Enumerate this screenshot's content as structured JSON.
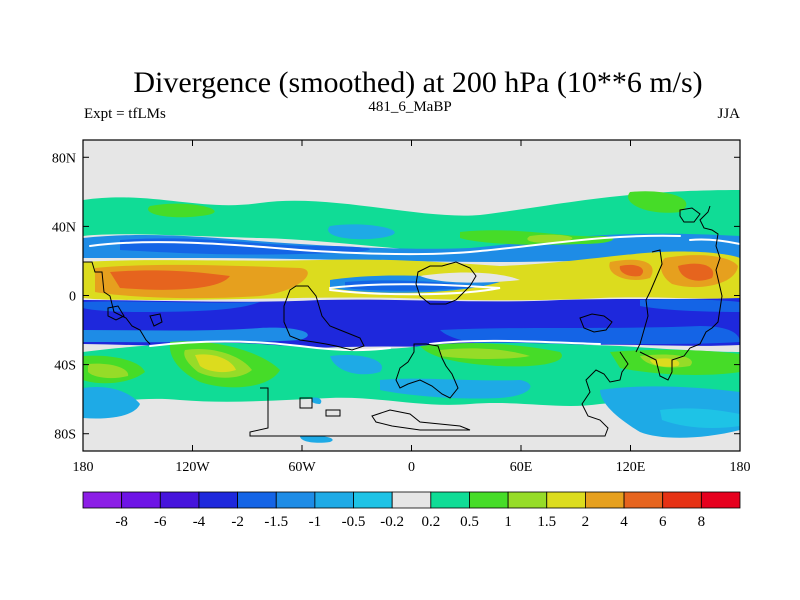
{
  "chart_data": {
    "type": "heatmap",
    "title": "Divergence (smoothed) at 200 hPa (10**6 m/s)",
    "left_label": "Expt = tfLMs",
    "center_label": "481_6_MaBP",
    "right_label": "JJA",
    "x_range": [
      -180,
      180
    ],
    "y_range": [
      -90,
      90
    ],
    "x_ticks": [
      {
        "value": -180,
        "label": "180"
      },
      {
        "value": -120,
        "label": "120W"
      },
      {
        "value": -60,
        "label": "60W"
      },
      {
        "value": 0,
        "label": "0"
      },
      {
        "value": 60,
        "label": "60E"
      },
      {
        "value": 120,
        "label": "120E"
      },
      {
        "value": 180,
        "label": "180"
      }
    ],
    "y_ticks": [
      {
        "value": 80,
        "label": "80N"
      },
      {
        "value": 40,
        "label": "40N"
      },
      {
        "value": 0,
        "label": "0"
      },
      {
        "value": -40,
        "label": "40S"
      },
      {
        "value": -80,
        "label": "80S"
      }
    ],
    "colorbar": {
      "levels": [
        "-8",
        "-6",
        "-4",
        "-2",
        "-1.5",
        "-1",
        "-0.5",
        "-0.2",
        "0.2",
        "0.5",
        "1",
        "1.5",
        "2",
        "4",
        "6",
        "8"
      ],
      "colors": [
        "#8c1ee6",
        "#6e14e6",
        "#4614dc",
        "#1e28dc",
        "#1464e6",
        "#1e8ce6",
        "#1eaae6",
        "#1ec3e6",
        "#e6e6e6",
        "#10dc96",
        "#46dc28",
        "#96dc28",
        "#dcdc1e",
        "#e6a01e",
        "#e6641e",
        "#e63214",
        "#e6001e"
      ]
    },
    "bands": [
      {
        "zone": "north-mid-lat green",
        "lat_range": [
          25,
          50
        ],
        "value": 0.5
      },
      {
        "zone": "northern tropics blue",
        "lat_range": [
          15,
          30
        ],
        "value": -1
      },
      {
        "zone": "northern subtropics yellow-orange",
        "lat_range": [
          -5,
          18
        ],
        "value": 2
      },
      {
        "zone": "equatorial deep blue",
        "lat_range": [
          -35,
          -5
        ],
        "value": -2
      },
      {
        "zone": "southern mid-lat green",
        "lat_range": [
          -65,
          -35
        ],
        "value": 0.5
      },
      {
        "zone": "southern blue patches",
        "lat_range": [
          -80,
          -55
        ],
        "value": -0.5
      }
    ]
  }
}
